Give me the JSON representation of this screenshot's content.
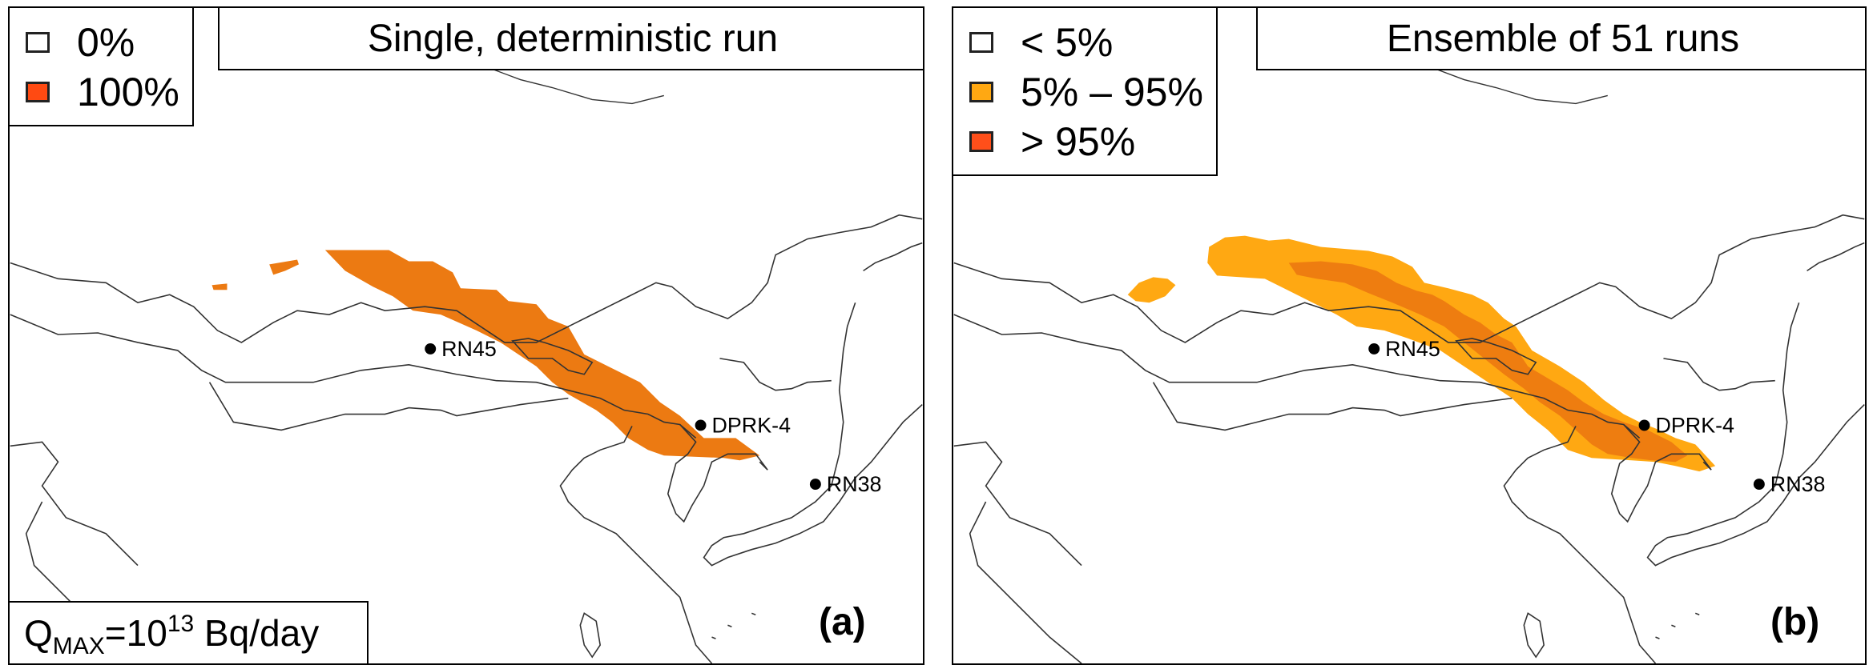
{
  "colors": {
    "none": "#ffffff",
    "hundred": "#ff4a12",
    "plume_single": "#ec7a12",
    "mid": "#ffa812",
    "high": "#ee7d10",
    "high_swatch": "#ff4f1a",
    "coast": "#333333"
  },
  "panel_a": {
    "title": "Single, deterministic run",
    "label": "(a)",
    "legend": [
      {
        "text": "0%",
        "color_key": "none"
      },
      {
        "text": "100%",
        "color_key": "hundred"
      }
    ],
    "q_max": {
      "symbol": "Q",
      "sub": "MAX",
      "eq": "=10",
      "sup": "13",
      "unit": " Bq/day"
    }
  },
  "panel_b": {
    "title": "Ensemble of 51 runs",
    "label": "(b)",
    "legend": [
      {
        "text": "< 5%",
        "color_key": "none"
      },
      {
        "text": "5% – 95%",
        "color_key": "mid"
      },
      {
        "text": "> 95%",
        "color_key": "high_swatch"
      }
    ]
  },
  "stations": {
    "rn45": "RN45",
    "dprk4": "DPRK-4",
    "rn38": "RN38"
  }
}
